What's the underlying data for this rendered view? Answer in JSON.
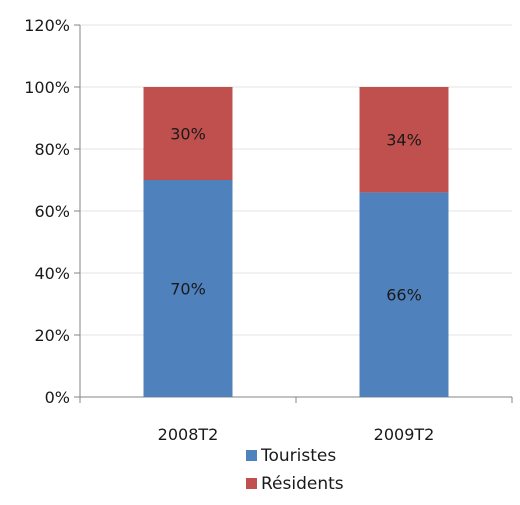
{
  "chart_data": {
    "type": "bar",
    "stacked": true,
    "categories": [
      "2008T2",
      "2009T2"
    ],
    "series": [
      {
        "name": "Touristes",
        "values": [
          70,
          66
        ],
        "labels": [
          "70%",
          "66%"
        ],
        "color": "#4f81bd"
      },
      {
        "name": "Résidents",
        "values": [
          30,
          34
        ],
        "labels": [
          "30%",
          "34%"
        ],
        "color": "#c0504d"
      }
    ],
    "ylim": [
      0,
      120
    ],
    "yticks": [
      0,
      20,
      40,
      60,
      80,
      100,
      120
    ],
    "ytick_labels": [
      "0%",
      "20%",
      "40%",
      "60%",
      "80%",
      "100%",
      "120%"
    ],
    "grid": true,
    "legend_position": "bottom"
  }
}
